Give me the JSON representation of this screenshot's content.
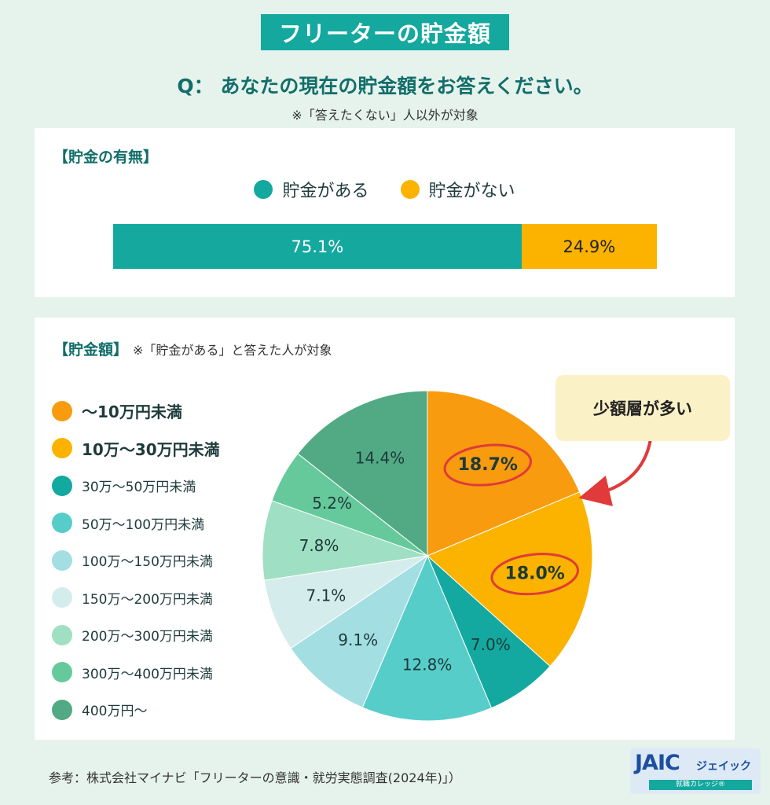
{
  "title": "フリーターの貯金額",
  "question": "Q：  あなたの現在の貯金額をお答えください。",
  "note": "※「答えたくない」人以外が対象",
  "colors": {
    "teal": "#14a89f",
    "yellow": "#fbb300",
    "orange": "#f89b0f",
    "highlight_red": "#e03a3a"
  },
  "panel1": {
    "heading": "【貯金の有無】"
  },
  "panel2": {
    "heading": "【貯金額】",
    "heading_note": "※「貯金がある」と答えた人が対象"
  },
  "callout": "少額層が多い",
  "source": "参考：株式会社マイナビ「フリーターの意識・就労実態調査(2024年)」）",
  "logo": {
    "mark": "JAIC",
    "kana": "ジェイック",
    "tag": "就職カレッジ®"
  },
  "chart_data": [
    {
      "type": "bar",
      "stacked": true,
      "orientation": "horizontal",
      "series": [
        {
          "name": "貯金がある",
          "value": 75.1,
          "label": "75.1%",
          "color": "#14a89f"
        },
        {
          "name": "貯金がない",
          "value": 24.9,
          "label": "24.9%",
          "color": "#fbb300"
        }
      ]
    },
    {
      "type": "pie",
      "start": "12 o'clock",
      "direction": "clockwise",
      "slices": [
        {
          "name": "～10万円未満",
          "value": 18.7,
          "label": "18.7%",
          "color": "#f89b0f",
          "bold": true,
          "highlight": true
        },
        {
          "name": "10万～30万円未満",
          "value": 18.0,
          "label": "18.0%",
          "color": "#fbb300",
          "bold": true,
          "highlight": true
        },
        {
          "name": "30万～50万円未満",
          "value": 7.0,
          "label": "7.0%",
          "color": "#13a8a0"
        },
        {
          "name": "50万～100万円未満",
          "value": 12.8,
          "label": "12.8%",
          "color": "#57cdc9"
        },
        {
          "name": "100万～150万円未満",
          "value": 9.1,
          "label": "9.1%",
          "color": "#a3dee3"
        },
        {
          "name": "150万～200万円未満",
          "value": 7.1,
          "label": "7.1%",
          "color": "#d5ecec"
        },
        {
          "name": "200万～300万円未満",
          "value": 7.8,
          "label": "7.8%",
          "color": "#9fdfc3"
        },
        {
          "name": "300万～400万円未満",
          "value": 5.2,
          "label": "5.2%",
          "color": "#66c99c"
        },
        {
          "name": "400万円～",
          "value": 14.4,
          "label": "14.4%",
          "color": "#52aa85"
        }
      ]
    }
  ]
}
